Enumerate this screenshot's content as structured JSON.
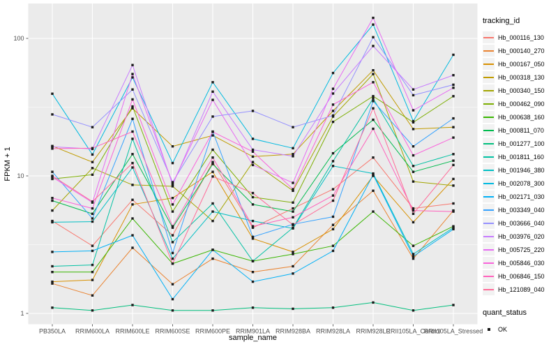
{
  "chart_data": {
    "type": "line",
    "title": "",
    "xlabel": "sample_name",
    "ylabel": "FPKM + 1",
    "y_scale": "log10",
    "grid": true,
    "legend_position": "right",
    "panel_bg": "#EBEBEB",
    "grid_color": "#FFFFFF",
    "tick_color": "#333333",
    "tick_label_color": "#4D4D4D",
    "marker_color": "#1A1A1A",
    "y_ticks": [
      {
        "label": "1",
        "value": 1
      },
      {
        "label": "10",
        "value": 10
      },
      {
        "label": "100",
        "value": 100
      }
    ],
    "y_minor_ticks": [
      3.1623,
      31.623
    ],
    "ylim": [
      1,
      180
    ],
    "categories": [
      "PB350LA",
      "RRIM600LA",
      "RRIM600LE",
      "RRIM600SE",
      "RRIM600PE",
      "RRIM901LA",
      "RRIM928BA",
      "RRIM928LA",
      "RRIM928LE",
      "RRII105LA_Control",
      "RRII105LA_Stressed"
    ],
    "legend_title": "tracking_id",
    "quant_legend": {
      "title": "quant_status",
      "label": "OK",
      "marker": "black-square"
    },
    "series": [
      {
        "name": "Hb_000116_130",
        "color": "#F8766D",
        "values": [
          4.7,
          3.1,
          6.7,
          3.7,
          12.6,
          4.2,
          5.8,
          8.0,
          13.6,
          5.8,
          6.3
        ]
      },
      {
        "name": "Hb_000140_270",
        "color": "#EA8331",
        "values": [
          1.65,
          1.35,
          3.0,
          1.63,
          2.5,
          2.0,
          2.2,
          4.4,
          7.8,
          2.5,
          5.6
        ]
      },
      {
        "name": "Hb_000167_050",
        "color": "#D89000",
        "values": [
          1.7,
          1.75,
          6.2,
          6.9,
          10.7,
          3.5,
          2.8,
          4.1,
          10.0,
          4.6,
          9.5
        ]
      },
      {
        "name": "Hb_000318_130",
        "color": "#C09B00",
        "values": [
          16.5,
          12.6,
          31.0,
          16.4,
          19.7,
          13.8,
          14.4,
          29.7,
          58.6,
          21.9,
          22.6
        ]
      },
      {
        "name": "Hb_000340_150",
        "color": "#A3A500",
        "values": [
          5.6,
          11.4,
          8.6,
          8.4,
          4.7,
          12.6,
          7.8,
          27.0,
          55.0,
          9.1,
          8.5
        ]
      },
      {
        "name": "Hb_000462_090",
        "color": "#7CAE00",
        "values": [
          9.5,
          10.2,
          32.0,
          5.5,
          15.5,
          7.0,
          6.4,
          24.7,
          38.0,
          24.5,
          38.0
        ]
      },
      {
        "name": "Hb_000638_160",
        "color": "#39B600",
        "values": [
          2.0,
          2.0,
          4.9,
          2.3,
          2.9,
          2.4,
          2.7,
          3.1,
          5.5,
          3.1,
          4.3
        ]
      },
      {
        "name": "Hb_000811_070",
        "color": "#00BB4E",
        "values": [
          6.6,
          5.3,
          14.4,
          4.2,
          12.2,
          6.2,
          5.5,
          14.6,
          25.6,
          10.7,
          12.9
        ]
      },
      {
        "name": "Hb_001277_100",
        "color": "#00BF7D",
        "values": [
          1.1,
          1.05,
          1.15,
          1.05,
          1.05,
          1.1,
          1.08,
          1.1,
          1.2,
          1.05,
          1.15
        ]
      },
      {
        "name": "Hb_001811_160",
        "color": "#00C1A3",
        "values": [
          2.2,
          2.25,
          18.6,
          3.3,
          6.3,
          2.4,
          4.2,
          12.8,
          36.5,
          11.8,
          14.4
        ]
      },
      {
        "name": "Hb_001946_380",
        "color": "#00BFC4",
        "values": [
          4.6,
          4.65,
          11.5,
          2.5,
          5.5,
          4.7,
          4.15,
          11.8,
          10.4,
          2.7,
          4.2
        ]
      },
      {
        "name": "Hb_002078_300",
        "color": "#00BAE0",
        "values": [
          39.6,
          14.3,
          52.0,
          12.4,
          48.0,
          18.6,
          15.9,
          56.0,
          126.0,
          25.0,
          76.0
        ]
      },
      {
        "name": "Hb_002171_030",
        "color": "#00B0F6",
        "values": [
          2.8,
          2.85,
          3.7,
          1.27,
          2.9,
          1.7,
          1.95,
          2.85,
          10.2,
          2.6,
          4.1
        ]
      },
      {
        "name": "Hb_003349_040",
        "color": "#35A2FF",
        "values": [
          10.7,
          4.9,
          26.0,
          2.75,
          21.0,
          3.6,
          4.45,
          5.05,
          35.0,
          16.4,
          26.2
        ]
      },
      {
        "name": "Hb_003666_040",
        "color": "#9590FF",
        "values": [
          28.0,
          22.6,
          42.5,
          9.0,
          27.0,
          29.7,
          22.6,
          27.5,
          102.0,
          38.6,
          46.0
        ]
      },
      {
        "name": "Hb_003976_020",
        "color": "#C77CFF",
        "values": [
          16.3,
          15.7,
          64.0,
          8.6,
          41.0,
          15.5,
          13.9,
          39.7,
          88.0,
          42.5,
          54.0
        ]
      },
      {
        "name": "Hb_005725_220",
        "color": "#E76BF3",
        "values": [
          9.8,
          6.4,
          55.0,
          8.8,
          35.7,
          12.0,
          8.9,
          43.0,
          141.0,
          30.0,
          43.7
        ]
      },
      {
        "name": "Hb_005846_030",
        "color": "#FA62DB",
        "values": [
          6.9,
          5.8,
          36.0,
          6.2,
          20.9,
          15.0,
          8.0,
          33.0,
          48.0,
          14.1,
          19.0
        ]
      },
      {
        "name": "Hb_006846_150",
        "color": "#FF62BC",
        "values": [
          15.8,
          15.9,
          21.0,
          4.3,
          13.6,
          4.3,
          5.0,
          7.2,
          22.0,
          5.6,
          5.5
        ]
      },
      {
        "name": "Hb_121089_040",
        "color": "#FF6A98",
        "values": [
          10.0,
          6.5,
          12.4,
          2.3,
          9.9,
          7.5,
          4.4,
          6.6,
          31.0,
          5.3,
          12.0
        ]
      }
    ]
  }
}
